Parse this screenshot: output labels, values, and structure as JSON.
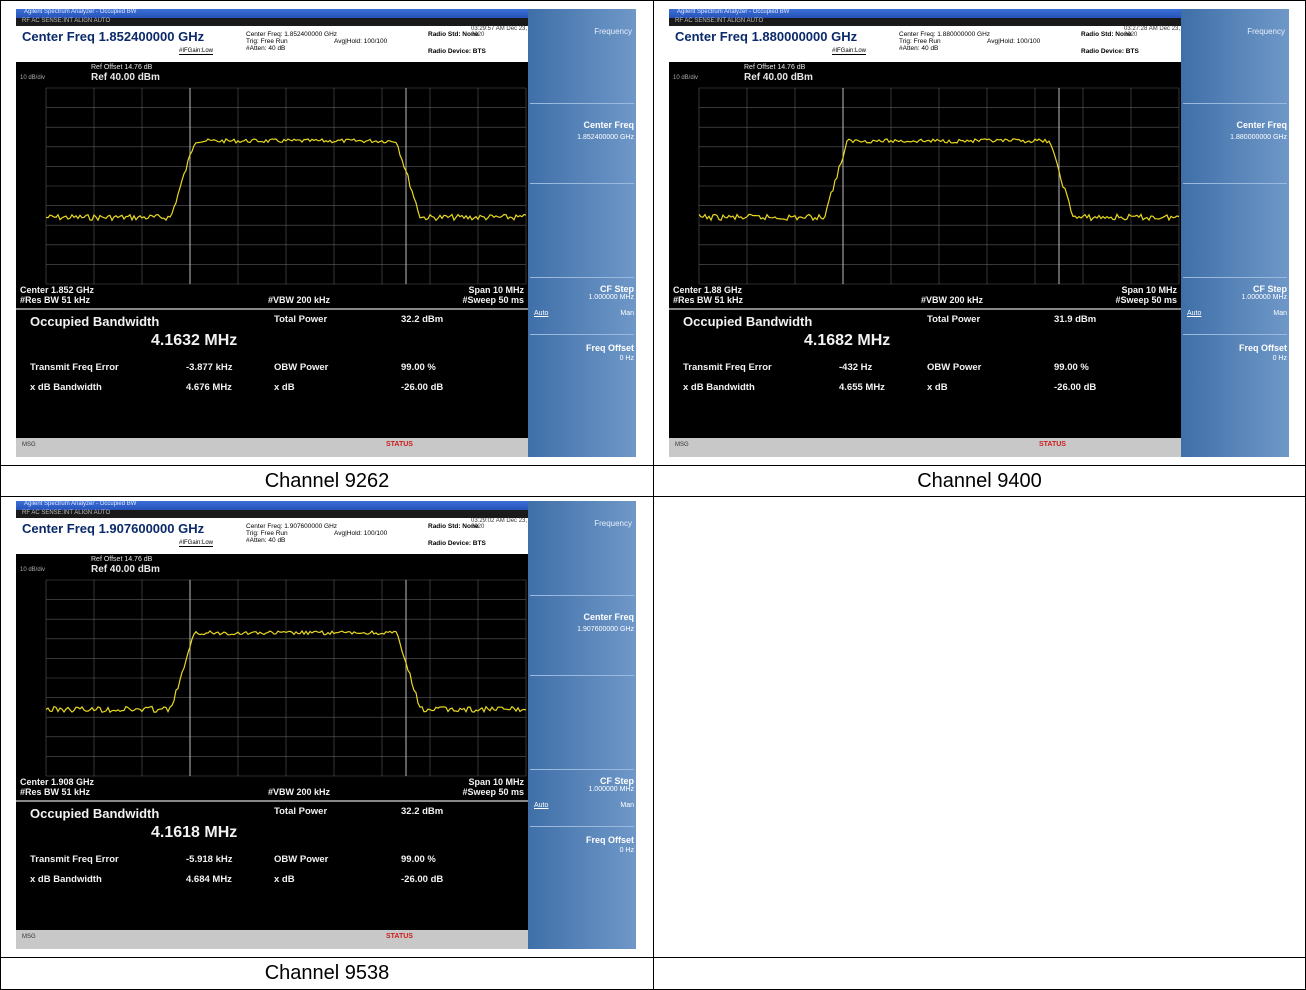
{
  "captions": {
    "c1": "Channel 9262",
    "c2": "Channel 9400",
    "c3": "Channel 9538"
  },
  "common": {
    "titlebar": "Agilent Spectrum Analyzer - Occupied BW",
    "menubar": "RF   AC   SENSE:INT   ALIGN AUTO",
    "if_gain": "#IFGain:Low",
    "trig": "Trig: Free Run",
    "atten": "#Atten: 40 dB",
    "avg_hold": "Avg|Hold: 100/100",
    "radio_std": "Radio Std: None",
    "radio_device": "Radio Device: BTS",
    "log_div": "10 dB/div",
    "ref_offset": "Ref Offset 14.76 dB",
    "ref_level": "Ref 40.00 dBm",
    "res_bw": "#Res BW  51 kHz",
    "vbw": "#VBW  200 kHz",
    "span": "Span 10 MHz",
    "sweep": "#Sweep  50 ms",
    "occ_bw_title": "Occupied Bandwidth",
    "total_power_label": "Total Power",
    "tx_freq_err_label": "Transmit Freq Error",
    "obw_power_label": "OBW Power",
    "obw_power_value": "99.00 %",
    "xdb_bw_label": "x dB Bandwidth",
    "xdb_label": "x dB",
    "xdb_value": "-26.00 dB",
    "status_msg": "MSG",
    "status_logo": "STATUS",
    "sk_title": "Frequency",
    "sk_center": "Center Freq",
    "sk_cfstep": "CF Step",
    "sk_cfstep_val": "1.000000 MHz",
    "sk_auto": "Auto",
    "sk_man": "Man",
    "sk_freqoffset": "Freq Offset",
    "sk_freqoffset_val": "0 Hz"
  },
  "screens": [
    {
      "center_freq_header": "Center Freq 1.852400000 GHz",
      "center_freq_small": "Center Freq: 1.852400000 GHz",
      "timestamp": "03:29:57 AM Dec 23, 2020",
      "center_footer": "Center  1.852 GHz",
      "occ_bw_value": "4.1632 MHz",
      "total_power": "32.2 dBm",
      "tx_freq_err": "-3.877 kHz",
      "xdb_bw": "4.676 MHz",
      "sk_center_val": "1.852400000 GHz"
    },
    {
      "center_freq_header": "Center Freq 1.880000000 GHz",
      "center_freq_small": "Center Freq: 1.880000000 GHz",
      "timestamp": "03:27:28 AM Dec 23, 2020",
      "center_footer": "Center  1.88 GHz",
      "occ_bw_value": "4.1682 MHz",
      "total_power": "31.9 dBm",
      "tx_freq_err": "-432 Hz",
      "xdb_bw": "4.655 MHz",
      "sk_center_val": "1.880000000 GHz"
    },
    {
      "center_freq_header": "Center Freq 1.907600000 GHz",
      "center_freq_small": "Center Freq: 1.907600000 GHz",
      "timestamp": "03:29:02 AM Dec 23, 2020",
      "center_footer": "Center  1.908 GHz",
      "occ_bw_value": "4.1618 MHz",
      "total_power": "32.2 dBm",
      "tx_freq_err": "-5.918 kHz",
      "xdb_bw": "4.684 MHz",
      "sk_center_val": "1.907600000 GHz"
    }
  ],
  "colors": {
    "trace": "#e8d820",
    "grid": "#5a5a5a",
    "softkey_panel": "#4f7fb8"
  }
}
